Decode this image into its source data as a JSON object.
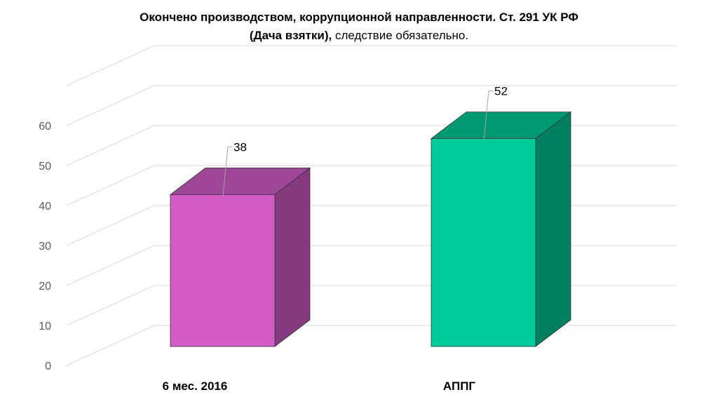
{
  "chart_data": {
    "type": "bar",
    "title_line1": "Окончено производством, коррупционной направленности. Ст. 291 УК РФ",
    "title_line2_bold": "(Дача взятки),",
    "title_line2_rest": " следствие обязательно.",
    "categories": [
      "6 мес. 2016",
      "АППГ"
    ],
    "values": [
      38,
      52
    ],
    "data_labels": [
      "38",
      "52"
    ],
    "yticks": [
      "0",
      "10",
      "20",
      "30",
      "40",
      "50",
      "60"
    ],
    "ylim": [
      0,
      60
    ],
    "grid": true,
    "colors": {
      "bar1_front": "#d35cc7",
      "bar1_top": "#9e4697",
      "bar1_side": "#85397e",
      "bar2_front": "#00cc99",
      "bar2_top": "#009a72",
      "bar2_side": "#008060",
      "grid": "#d9d9d9"
    }
  }
}
